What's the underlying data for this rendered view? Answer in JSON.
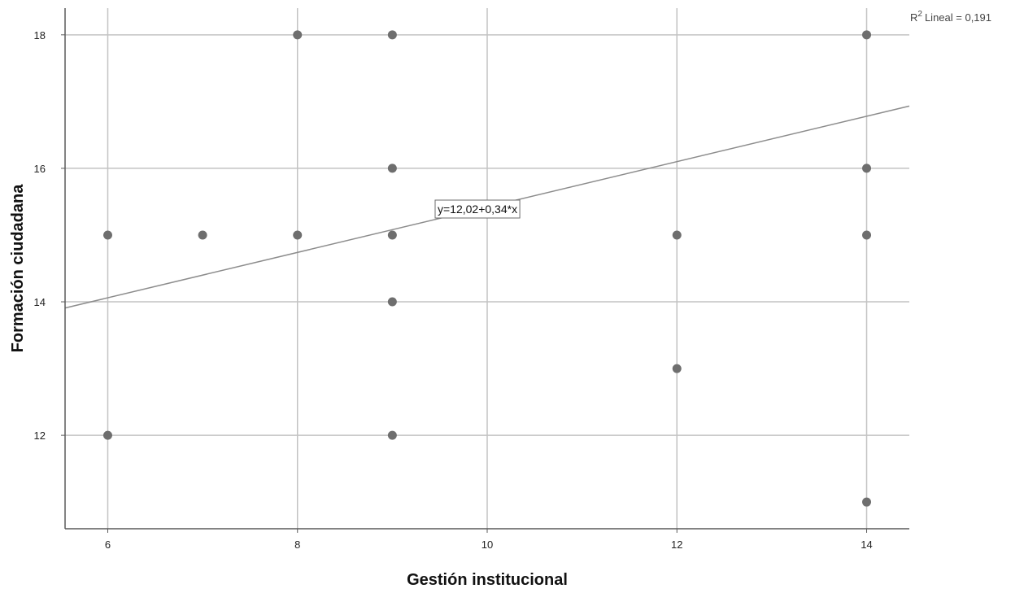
{
  "chart_data": {
    "type": "scatter",
    "xlabel": "Gestión institucional",
    "ylabel": "Formación ciudadana",
    "xlim": [
      5.55,
      14.45
    ],
    "ylim": [
      10.6,
      18.4
    ],
    "x_ticks": [
      6,
      8,
      10,
      12,
      14
    ],
    "y_ticks": [
      12,
      14,
      16,
      18
    ],
    "grid": true,
    "points": [
      {
        "x": 6,
        "y": 15
      },
      {
        "x": 6,
        "y": 12
      },
      {
        "x": 7,
        "y": 15
      },
      {
        "x": 8,
        "y": 18
      },
      {
        "x": 8,
        "y": 15
      },
      {
        "x": 9,
        "y": 18
      },
      {
        "x": 9,
        "y": 16
      },
      {
        "x": 9,
        "y": 15
      },
      {
        "x": 9,
        "y": 14
      },
      {
        "x": 9,
        "y": 12
      },
      {
        "x": 12,
        "y": 15
      },
      {
        "x": 12,
        "y": 13
      },
      {
        "x": 14,
        "y": 18
      },
      {
        "x": 14,
        "y": 16
      },
      {
        "x": 14,
        "y": 15
      },
      {
        "x": 14,
        "y": 11
      }
    ],
    "fit_line": {
      "intercept": 12.02,
      "slope": 0.34,
      "label": "y=12,02+0,34*x"
    },
    "r2_label": "Lineal = 0,191",
    "r2_prefix": "R",
    "r2_sup": "2",
    "colors": {
      "points": "#6e6e6e",
      "grid": "#c3c3c3",
      "axis": "#5a5a5a",
      "fit_line": "#8c8c8c"
    }
  }
}
